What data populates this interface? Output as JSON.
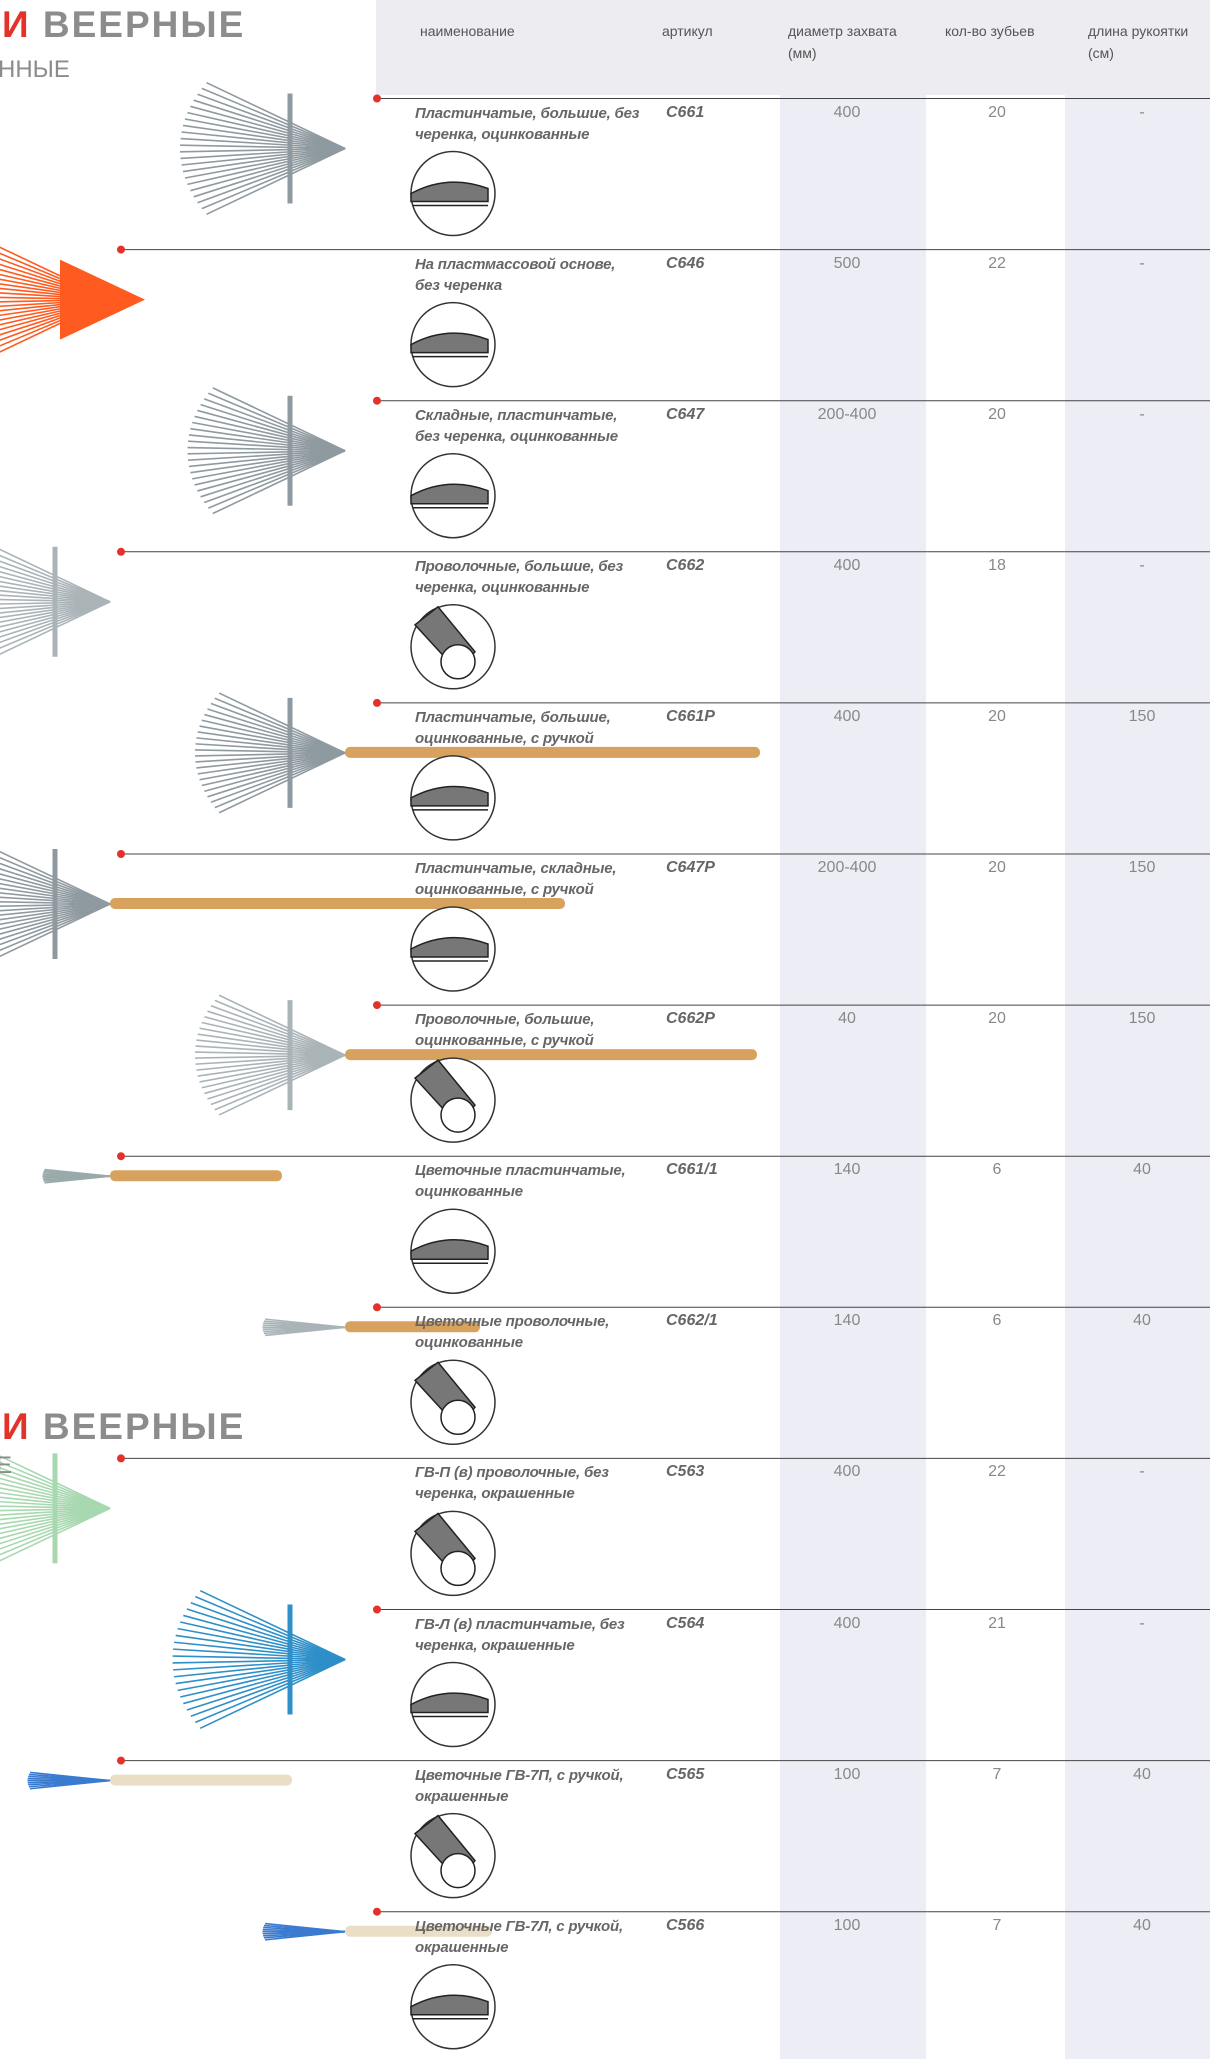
{
  "sections": [
    {
      "title_accent": "И",
      "title": "ВЕЕРНЫЕ",
      "subtitle": "ННЫЕ"
    },
    {
      "title_accent": "И",
      "title": "ВЕЕРНЫЕ",
      "subtitle": "Е"
    }
  ],
  "table": {
    "columns": [
      "наименование",
      "артикул",
      "диаметр захвата (мм)",
      "кол-во зубьев",
      "длина рукоятки (см)"
    ],
    "rows": [
      [
        "Пластинчатые, большие, без черенка, оцинкованные",
        "С661",
        "400",
        "20",
        "-"
      ],
      [
        "На пластмассовой основе, без черенка",
        "С646",
        "500",
        "22",
        "-"
      ],
      [
        "Складные, пластинчатые, без черенка, оцинкованные",
        "С647",
        "200-400",
        "20",
        "-"
      ],
      [
        "Проволочные, большие, без черенка, оцинкованные",
        "С662",
        "400",
        "18",
        "-"
      ],
      [
        "Пластинчатые, большие, оцинкованные, с ручкой",
        "С661Р",
        "400",
        "20",
        "150"
      ],
      [
        "Пластинчатые, складные, оцинкованные, с ручкой",
        "С647Р",
        "200-400",
        "20",
        "150"
      ],
      [
        "Проволочные, большие, оцинкованные, с ручкой",
        "С662Р",
        "40",
        "20",
        "150"
      ],
      [
        "Цветочные пластинчатые, оцинкованные",
        "С661/1",
        "140",
        "6",
        "40"
      ],
      [
        "Цветочные проволочные, оцинкованные",
        "С662/1",
        "140",
        "6",
        "40"
      ],
      [
        "ГВ-П (в) проволочные, без черенка, окрашенные",
        "С563",
        "400",
        "22",
        "-"
      ],
      [
        "ГВ-Л (в) пластинчатые, без черенка, окрашенные",
        "С564",
        "400",
        "21",
        "-"
      ],
      [
        "Цветочные ГВ-7П, с ручкой, окрашенные",
        "С565",
        "100",
        "7",
        "40"
      ],
      [
        "Цветочные ГВ-7Л, с ручкой, окрашенные",
        "С566",
        "100",
        "7",
        "40"
      ]
    ]
  }
}
